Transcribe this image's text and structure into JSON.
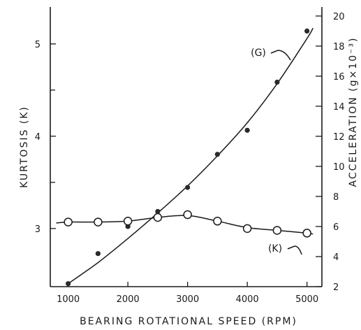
{
  "chart_data": {
    "type": "line",
    "xlabel": "BEARING ROTATIONAL SPEED (RPM)",
    "ylabel_left": "KURTOSIS (K)",
    "ylabel_right": "ACCELERATION (g×10⁻³)",
    "xlim": [
      700,
      5250
    ],
    "ylim_left": [
      2.37,
      5.4
    ],
    "ylim_right": [
      2,
      20.6
    ],
    "x_ticks": [
      1000,
      2000,
      3000,
      4000,
      5000
    ],
    "y_left_ticks": [
      3,
      4,
      5
    ],
    "y_left_minor_ticks": [
      3.5,
      4.5
    ],
    "y_right_ticks": [
      2,
      4,
      6,
      8,
      10,
      12,
      14,
      16,
      18,
      20
    ],
    "grid": false,
    "series": [
      {
        "name": "(G)",
        "axis": "right",
        "marker": "filled-circle",
        "x": [
          1000,
          1500,
          2000,
          2500,
          3000,
          3500,
          4000,
          4500,
          5000
        ],
        "values": [
          2.2,
          4.2,
          6.0,
          7.0,
          8.6,
          10.8,
          12.4,
          15.6,
          19.0
        ],
        "fit": [
          [
            1000,
            2.2
          ],
          [
            1500,
            3.6
          ],
          [
            2000,
            5.2
          ],
          [
            2500,
            6.9
          ],
          [
            3000,
            8.7
          ],
          [
            3500,
            10.7
          ],
          [
            4000,
            12.9
          ],
          [
            4500,
            15.5
          ],
          [
            5000,
            18.5
          ],
          [
            5100,
            19.2
          ]
        ]
      },
      {
        "name": "(K)",
        "axis": "left",
        "marker": "open-circle",
        "x": [
          1000,
          1500,
          2000,
          2500,
          3000,
          3500,
          4000,
          4500,
          5000
        ],
        "values": [
          3.07,
          3.07,
          3.08,
          3.12,
          3.15,
          3.08,
          3.0,
          2.98,
          2.95
        ],
        "fit": [
          [
            800,
            3.06
          ],
          [
            1000,
            3.07
          ],
          [
            1500,
            3.07
          ],
          [
            2000,
            3.08
          ],
          [
            2500,
            3.12
          ],
          [
            3000,
            3.14
          ],
          [
            3500,
            3.08
          ],
          [
            4000,
            3.01
          ],
          [
            4500,
            2.98
          ],
          [
            5000,
            2.95
          ],
          [
            5100,
            2.94
          ]
        ]
      }
    ]
  }
}
